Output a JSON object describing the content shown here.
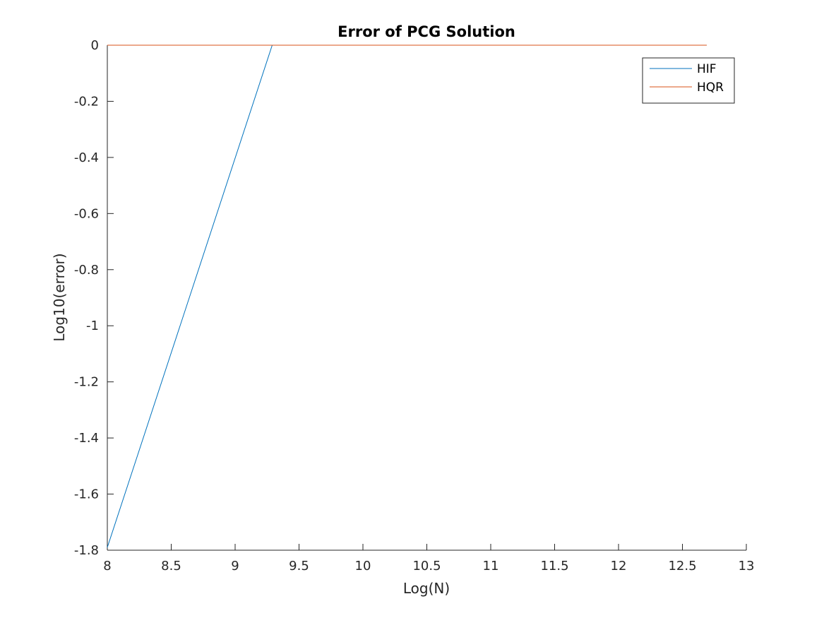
{
  "chart_data": {
    "type": "line",
    "title": "Error of PCG Solution",
    "xlabel": "Log(N)",
    "ylabel": "Log10(error)",
    "xlim": [
      8,
      13
    ],
    "ylim": [
      -1.8,
      0
    ],
    "xticks": [
      "8",
      "8.5",
      "9",
      "9.5",
      "10",
      "10.5",
      "11",
      "11.5",
      "12",
      "12.5",
      "13"
    ],
    "yticks": [
      "0",
      "-0.2",
      "-0.4",
      "-0.6",
      "-0.8",
      "-1",
      "-1.2",
      "-1.4",
      "-1.6",
      "-1.8"
    ],
    "grid": false,
    "legend_position": "top-right",
    "series": [
      {
        "name": "HIF",
        "color": "#0072BD",
        "x": [
          8,
          9.29,
          12.69
        ],
        "y": [
          -1.79,
          0,
          0
        ]
      },
      {
        "name": "HQR",
        "color": "#D95319",
        "x": [
          8,
          12.69
        ],
        "y": [
          0,
          0
        ]
      }
    ]
  }
}
